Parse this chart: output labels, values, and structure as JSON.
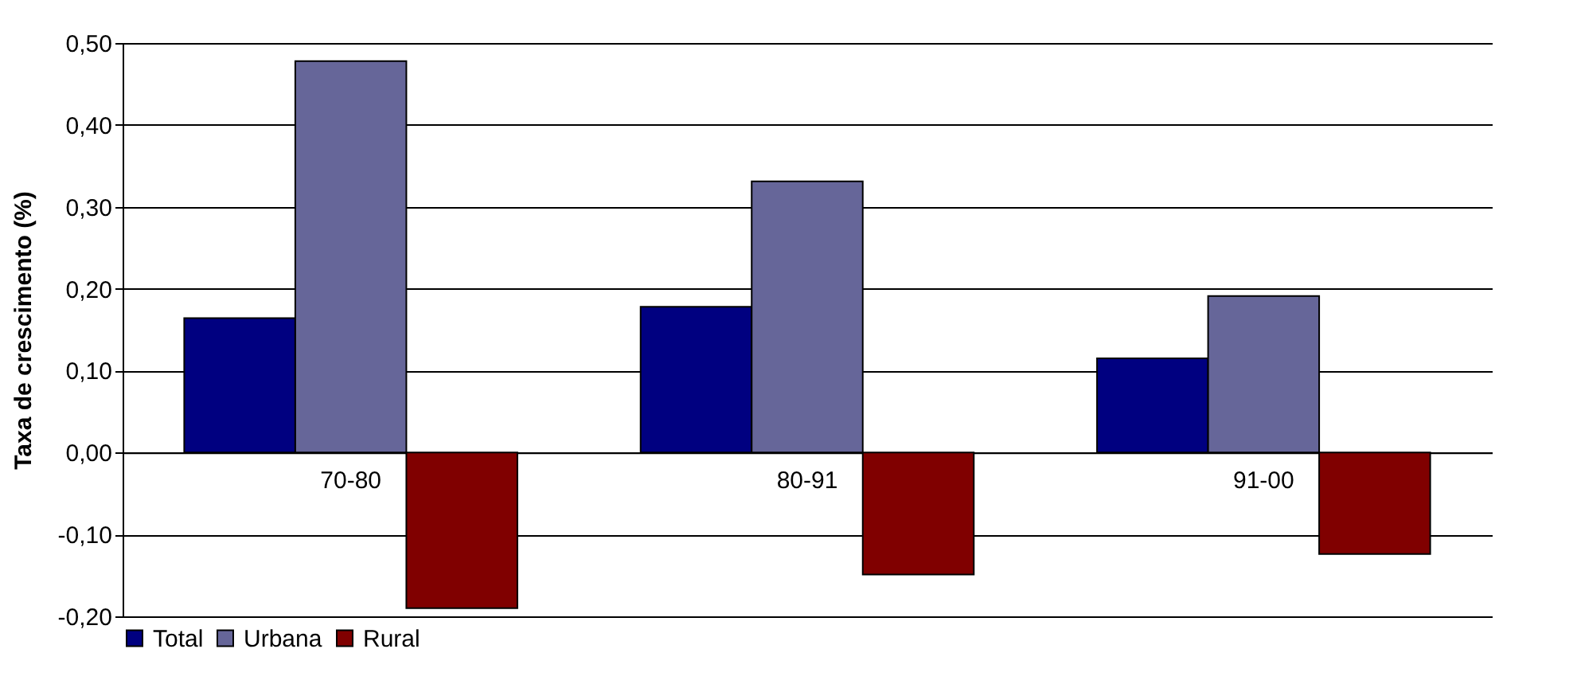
{
  "chart_data": {
    "type": "bar",
    "ylabel": "Taxa de crescimento (%)",
    "categories": [
      "70-80",
      "80-91",
      "91-00"
    ],
    "series": [
      {
        "name": "Total",
        "color": "#000080",
        "values": [
          0.164,
          0.178,
          0.115
        ]
      },
      {
        "name": "Urbana",
        "color": "#666699",
        "values": [
          0.478,
          0.331,
          0.191
        ]
      },
      {
        "name": "Rural",
        "color": "#800000",
        "values": [
          -0.19,
          -0.149,
          -0.124
        ]
      }
    ],
    "ylim": [
      -0.2,
      0.5
    ],
    "yticks": [
      {
        "value": -0.2,
        "label": "-0,20"
      },
      {
        "value": -0.1,
        "label": "-0,10"
      },
      {
        "value": 0,
        "label": "0,00"
      },
      {
        "value": 0.1,
        "label": "0,10"
      },
      {
        "value": 0.2,
        "label": "0,20"
      },
      {
        "value": 0.3,
        "label": "0,30"
      },
      {
        "value": 0.4,
        "label": "0,40"
      },
      {
        "value": 0.5,
        "label": "0,50"
      }
    ],
    "grid": "y",
    "legend": "bottom"
  }
}
